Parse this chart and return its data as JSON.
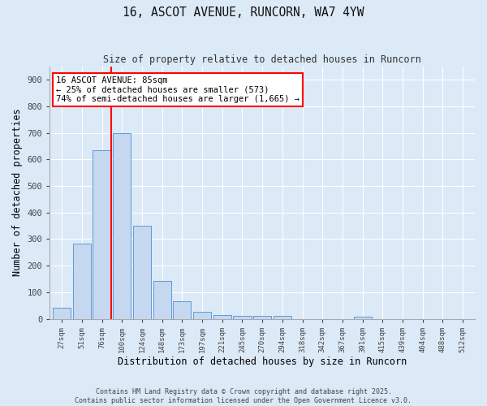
{
  "title": "16, ASCOT AVENUE, RUNCORN, WA7 4YW",
  "subtitle": "Size of property relative to detached houses in Runcorn",
  "xlabel": "Distribution of detached houses by size in Runcorn",
  "ylabel": "Number of detached properties",
  "bar_color": "#c5d8f0",
  "bar_edge_color": "#5b9bd5",
  "background_color": "#dce9f7",
  "fig_background_color": "#dce9f7",
  "grid_color": "#ffffff",
  "categories": [
    "27sqm",
    "51sqm",
    "76sqm",
    "100sqm",
    "124sqm",
    "148sqm",
    "173sqm",
    "197sqm",
    "221sqm",
    "245sqm",
    "270sqm",
    "294sqm",
    "318sqm",
    "342sqm",
    "367sqm",
    "391sqm",
    "415sqm",
    "439sqm",
    "464sqm",
    "488sqm",
    "512sqm"
  ],
  "values": [
    43,
    283,
    633,
    700,
    350,
    143,
    65,
    28,
    15,
    11,
    10,
    10,
    0,
    0,
    0,
    8,
    0,
    0,
    0,
    0,
    0
  ],
  "ylim": [
    0,
    950
  ],
  "yticks": [
    0,
    100,
    200,
    300,
    400,
    500,
    600,
    700,
    800,
    900
  ],
  "annotation_text": "16 ASCOT AVENUE: 85sqm\n← 25% of detached houses are smaller (573)\n74% of semi-detached houses are larger (1,665) →",
  "footer": "Contains HM Land Registry data © Crown copyright and database right 2025.\nContains public sector information licensed under the Open Government Licence v3.0."
}
